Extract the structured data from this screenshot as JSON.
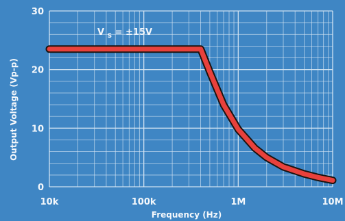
{
  "chart_data": {
    "type": "line",
    "title": "",
    "xlabel": "Frequency (Hz)",
    "ylabel": "Output Voltage (Vp-p)",
    "x_scale": "log",
    "xlim": [
      10000,
      10000000
    ],
    "ylim": [
      0,
      30
    ],
    "x_tick_labels": [
      "10k",
      "100k",
      "1M",
      "10M"
    ],
    "y_tick_labels": [
      "0",
      "10",
      "20",
      "30"
    ],
    "grid": true,
    "annotation": {
      "prefix": "V",
      "subscript": "S",
      "suffix": " = ±15V"
    },
    "series": [
      {
        "color": "#e8413c",
        "x": [
          10000,
          400000,
          500000,
          700000,
          1000000,
          1500000,
          2000000,
          3000000,
          5000000,
          7000000,
          10000000
        ],
        "y": [
          23.5,
          23.5,
          19.6,
          14.0,
          9.8,
          6.6,
          5.0,
          3.4,
          2.2,
          1.6,
          1.1
        ]
      }
    ]
  }
}
